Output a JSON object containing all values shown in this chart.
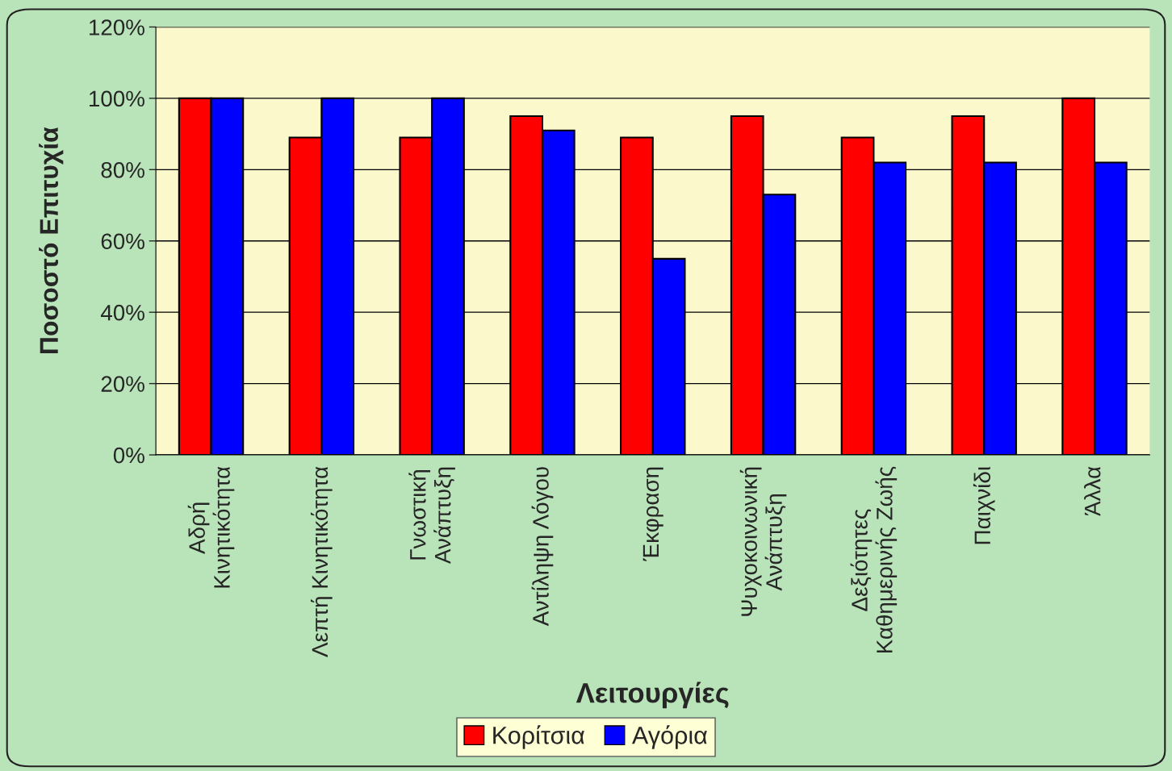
{
  "chart_data": {
    "type": "bar",
    "xlabel": "Λειτουργίες",
    "ylabel": "Ποσοστό Επιτυχία",
    "categories": [
      "Αδρή\nΚινητικότητα",
      "Λεπτή Κινητικότητα",
      "Γνωστική\nΑνάπτυξη",
      "Αντίληψη Λόγου",
      "Έκφραση",
      "Ψυχοκοινωνική\nΑνάπτυξη",
      "Δεξιότητες\nΚαθημερινής Ζωής",
      "Παιχνίδι",
      "Άλλα"
    ],
    "series": [
      {
        "name": "Κορίτσια",
        "color": "#ff0000",
        "values": [
          100,
          89,
          89,
          95,
          89,
          95,
          89,
          95,
          100
        ]
      },
      {
        "name": "Αγόρια",
        "color": "#0000ff",
        "values": [
          100,
          100,
          100,
          91,
          55,
          73,
          82,
          82,
          82
        ]
      }
    ],
    "ylim": [
      0,
      120
    ],
    "yticks": [
      {
        "value": 0,
        "label": "0%"
      },
      {
        "value": 20,
        "label": "20%"
      },
      {
        "value": 40,
        "label": "40%"
      },
      {
        "value": 60,
        "label": "60%"
      },
      {
        "value": 80,
        "label": "80%"
      },
      {
        "value": 100,
        "label": "100%"
      },
      {
        "value": 120,
        "label": "120%"
      }
    ],
    "grid": "y",
    "legend": "bottom"
  }
}
